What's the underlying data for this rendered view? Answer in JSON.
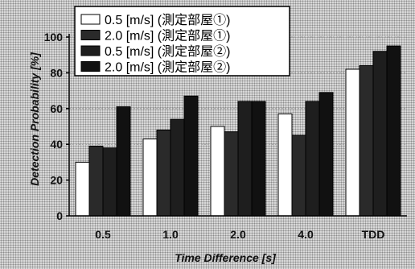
{
  "chart_data": {
    "type": "bar",
    "categories": [
      "0.5",
      "1.0",
      "2.0",
      "4.0",
      "TDD"
    ],
    "series": [
      {
        "name": "0.5 [m/s] (測定部屋①)",
        "values": [
          30,
          43,
          50,
          57,
          82
        ]
      },
      {
        "name": "2.0 [m/s] (測定部屋①)",
        "values": [
          39,
          48,
          47,
          45,
          84
        ]
      },
      {
        "name": "0.5 [m/s] (測定部屋②)",
        "values": [
          38,
          54,
          64,
          64,
          92
        ]
      },
      {
        "name": "2.0 [m/s] (測定部屋②)",
        "values": [
          61,
          67,
          64,
          69,
          95
        ]
      }
    ],
    "title": "",
    "xlabel": "Time Difference [s]",
    "ylabel": "Detection Probability [%]",
    "ylim": [
      0,
      100
    ],
    "yticks": [
      "0",
      "20",
      "40",
      "60",
      "80",
      "100"
    ],
    "grid": true,
    "legend": "top-left",
    "colors": {
      "series": [
        "#ffffff",
        "#2a2a2a",
        "#1e1e1e",
        "#111111"
      ],
      "stroke": "#000000",
      "grid": "#9a9a9a"
    }
  }
}
